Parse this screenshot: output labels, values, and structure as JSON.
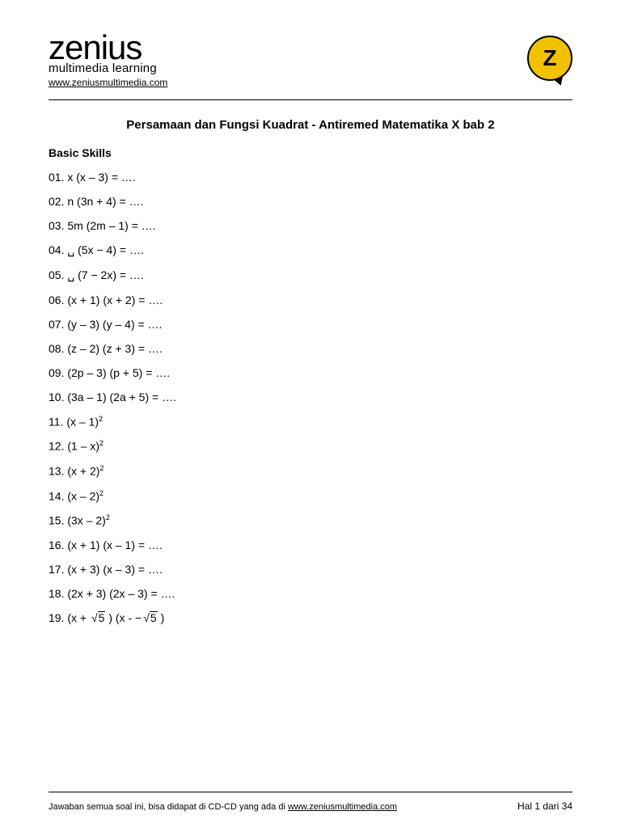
{
  "brand": {
    "name": "zenius",
    "tagline": "multimedia learning",
    "url": "www.zeniusmultimedia.com",
    "logo_letter": "Z",
    "logo_bg": "#f2c200",
    "logo_border": "#000000"
  },
  "doc_title": "Persamaan dan Fungsi Kuadrat - Antiremed Matematika X bab 2",
  "section_title": "Basic Skills",
  "questions": [
    {
      "num": "01.",
      "body": "x (x – 3) = …."
    },
    {
      "num": "02.",
      "body": "n (3n + 4) = …."
    },
    {
      "num": "03.",
      "body": "5m (2m – 1) = …."
    },
    {
      "num": "04.",
      "body": "␣ (5x − 4)  = …."
    },
    {
      "num": "05.",
      "body": "␣ (7 − 2x)  = …."
    },
    {
      "num": "06.",
      "body": "(x + 1) (x + 2) = …."
    },
    {
      "num": "07.",
      "body": "(y – 3) (y – 4) = …."
    },
    {
      "num": "08.",
      "body": "(z – 2) (z + 3) = …."
    },
    {
      "num": "09.",
      "body": "(2p – 3) (p + 5) = …."
    },
    {
      "num": "10.",
      "body": "(3a – 1) (2a + 5) = …."
    },
    {
      "num": "11.",
      "body": "(x – 1)",
      "sup": "2"
    },
    {
      "num": "12.",
      "body": "(1 – x)",
      "sup": "2"
    },
    {
      "num": "13.",
      "body": "(x + 2)",
      "sup": "2"
    },
    {
      "num": "14.",
      "body": "(x – 2)",
      "sup": "2"
    },
    {
      "num": "15.",
      "body": "(3x – 2)",
      "sup": "2"
    },
    {
      "num": "16.",
      "body": "(x + 1) (x – 1) = …."
    },
    {
      "num": "17.",
      "body": "(x + 3) (x – 3) = …."
    },
    {
      "num": "18.",
      "body": "(2x + 3) (2x – 3) = …."
    },
    {
      "num": "19.",
      "sqrt_expr": {
        "pre": "(x + ",
        "r1": "5",
        "mid": " ) (x -  −",
        "r2": "5",
        "post": " )"
      }
    }
  ],
  "footer": {
    "left_pre": "Jawaban semua soal ini, bisa didapat di CD-CD yang ada di ",
    "left_link": "www.zeniusmultimedia.com",
    "right": "Hal 1 dari 34"
  },
  "colors": {
    "text": "#000000",
    "background": "#ffffff",
    "rule": "#000000"
  }
}
